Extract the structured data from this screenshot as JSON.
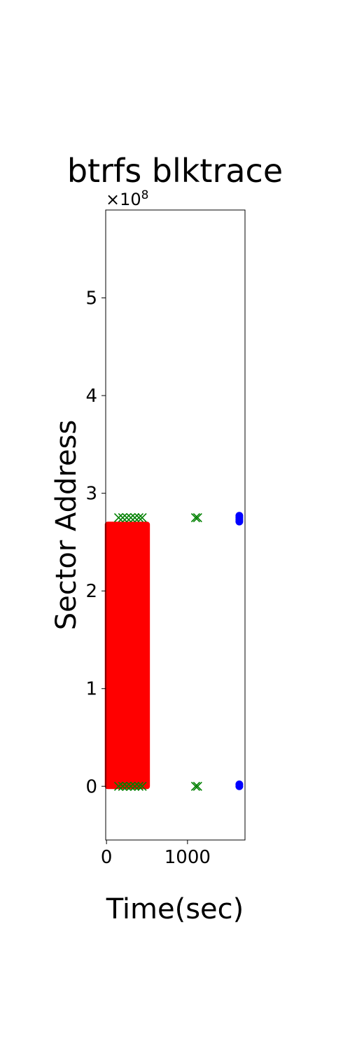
{
  "chart_data": {
    "type": "scatter",
    "title": "btrfs blktrace",
    "xlabel": "Time(sec)",
    "ylabel": "Sector Address",
    "y_multiplier": "×10",
    "y_multiplier_exp": "8",
    "xlim": [
      -10,
      1710
    ],
    "ylim": [
      -0.55,
      5.9
    ],
    "x_ticks": [
      {
        "value": 0,
        "label": "0"
      },
      {
        "value": 1000,
        "label": "1000"
      }
    ],
    "y_ticks": [
      {
        "value": 0,
        "label": "0"
      },
      {
        "value": 1,
        "label": "1"
      },
      {
        "value": 2,
        "label": "2"
      },
      {
        "value": 3,
        "label": "3"
      },
      {
        "value": 4,
        "label": "4"
      },
      {
        "value": 5,
        "label": "5"
      }
    ],
    "grid": false,
    "series": [
      {
        "color": "#ff0000",
        "marker": "circle",
        "band": {
          "x": [
            5,
            510
          ],
          "y": [
            0,
            2.68
          ]
        }
      },
      {
        "color": "#008000",
        "marker": "x",
        "points": [
          [
            150,
            2.75
          ],
          [
            200,
            2.75
          ],
          [
            250,
            2.75
          ],
          [
            300,
            2.75
          ],
          [
            350,
            2.75
          ],
          [
            400,
            2.75
          ],
          [
            440,
            2.75
          ],
          [
            150,
            0
          ],
          [
            200,
            0
          ],
          [
            250,
            0
          ],
          [
            300,
            0
          ],
          [
            350,
            0
          ],
          [
            400,
            0
          ],
          [
            440,
            0
          ],
          [
            1100,
            2.75
          ],
          [
            1125,
            2.75
          ],
          [
            1100,
            0
          ],
          [
            1125,
            0
          ]
        ]
      },
      {
        "color": "#0000ff",
        "marker": "circle",
        "points": [
          [
            1640,
            2.71
          ],
          [
            1640,
            2.73
          ],
          [
            1640,
            2.75
          ],
          [
            1640,
            2.77
          ],
          [
            1640,
            0
          ],
          [
            1640,
            0.02
          ]
        ]
      }
    ]
  }
}
